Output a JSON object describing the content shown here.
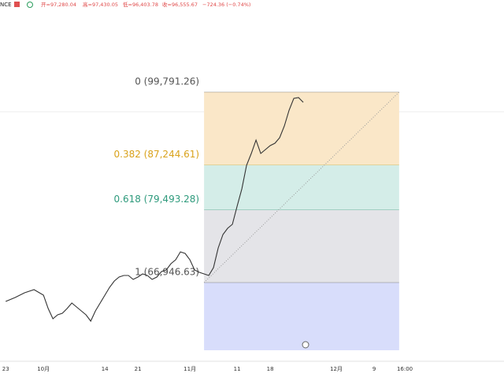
{
  "header": {
    "symbol": "NCE",
    "quote": [
      "开=97,280.04",
      "高=97,430.05",
      "低=96,403.78",
      "收=96,555.67",
      "−724.36 (−0.74%)"
    ]
  },
  "chart_data": {
    "type": "line",
    "color": "#333333",
    "x": [
      0,
      2,
      4,
      6,
      8,
      9,
      10,
      11,
      12,
      13,
      14,
      15,
      16,
      17,
      18,
      19,
      20,
      21,
      22,
      23,
      24,
      25,
      26,
      27,
      28,
      29,
      30,
      31,
      32,
      33,
      34,
      35,
      36,
      37,
      38,
      39,
      40,
      41,
      42,
      43,
      44,
      45,
      46,
      47,
      48,
      49,
      50,
      51,
      52,
      53,
      54,
      55,
      56,
      57,
      58,
      59,
      60,
      61,
      62,
      63
    ],
    "values": [
      63690,
      64370,
      65180,
      65730,
      64780,
      62470,
      60700,
      61380,
      61650,
      62470,
      63420,
      62740,
      62060,
      61380,
      60300,
      62060,
      63420,
      64780,
      66130,
      67220,
      67900,
      68170,
      68170,
      67490,
      67900,
      68440,
      68170,
      67490,
      67900,
      68850,
      69120,
      70200,
      70880,
      72240,
      71970,
      70880,
      69120,
      68710,
      68440,
      68170,
      69530,
      72920,
      75230,
      76310,
      76990,
      80110,
      83100,
      87170,
      89200,
      91510,
      89200,
      89880,
      90560,
      90970,
      91920,
      93960,
      96670,
      98700,
      98840,
      98030
    ],
    "xlim": [
      -1.2,
      105.5
    ],
    "ylim": [
      50660,
      115670
    ],
    "xticks": [
      {
        "value": 0,
        "label": "23"
      },
      {
        "value": 8,
        "label": "10月"
      },
      {
        "value": 21,
        "label": "14"
      },
      {
        "value": 28,
        "label": "21"
      },
      {
        "value": 39,
        "label": "11月"
      },
      {
        "value": 49,
        "label": "11"
      },
      {
        "value": 56,
        "label": "18"
      },
      {
        "value": 70,
        "label": "12月"
      },
      {
        "value": 78,
        "label": "9"
      },
      {
        "value": 84.5,
        "label": "16:00"
      }
    ],
    "fib_x": [
      42,
      83.3
    ],
    "fib_levels": [
      {
        "value": 99791.26,
        "label": "0 (99,791.26)",
        "color": "#555555",
        "fill": "#fae7c8"
      },
      {
        "value": 87244.61,
        "label": "0.382 (87,244.61)",
        "color": "#d9a21b",
        "fill": "#d4ede8"
      },
      {
        "value": 79493.28,
        "label": "0.618 (79,493.28)",
        "color": "#2e9a7c",
        "fill": "#e4e4e8"
      },
      {
        "value": 66946.63,
        "label": "1 (66,946.63)",
        "color": "#555555",
        "fill": "#d8ddfb"
      }
    ]
  }
}
